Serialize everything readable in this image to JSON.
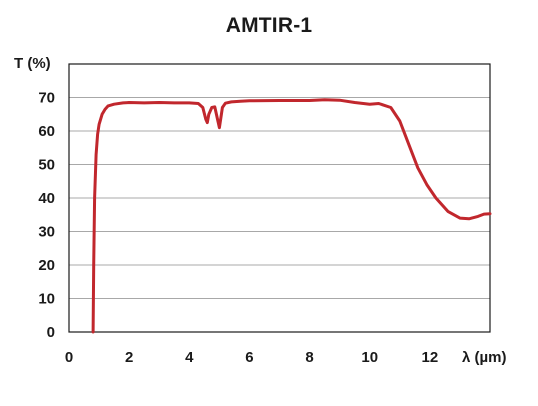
{
  "chart_data": {
    "type": "line",
    "title": "AMTIR-1",
    "ylabel": "T (%)",
    "xlabel": "λ (µm)",
    "xlim": [
      0,
      14
    ],
    "ylim": [
      0,
      80
    ],
    "xticks": [
      0,
      2,
      4,
      6,
      8,
      10,
      12
    ],
    "yticks": [
      0,
      10,
      20,
      30,
      40,
      50,
      60,
      70
    ],
    "grid": "horizontal",
    "line_color": "#c1272d",
    "series": [
      {
        "x": [
          0.8,
          0.82,
          0.85,
          0.9,
          0.95,
          1.0,
          1.1,
          1.2,
          1.3,
          1.5,
          1.8,
          2.0,
          2.5,
          3.0,
          3.5,
          4.0,
          4.3,
          4.45,
          4.55,
          4.6,
          4.65,
          4.75,
          4.85,
          4.95,
          5.0,
          5.05,
          5.1,
          5.2,
          5.4,
          5.7,
          6.0,
          7.0,
          8.0,
          8.5,
          9.0,
          9.5,
          10.0,
          10.3,
          10.7,
          11.0,
          11.3,
          11.6,
          11.9,
          12.2,
          12.6,
          13.0,
          13.3,
          13.6,
          13.8,
          14.0
        ],
        "y": [
          0,
          20,
          40,
          53,
          59,
          62,
          65,
          66.5,
          67.5,
          68,
          68.4,
          68.5,
          68.4,
          68.5,
          68.4,
          68.4,
          68.2,
          67,
          63.5,
          62.5,
          65,
          67,
          67.2,
          63,
          61,
          64,
          67,
          68.3,
          68.7,
          68.9,
          69,
          69.1,
          69.1,
          69.3,
          69.2,
          68.5,
          68,
          68.2,
          67,
          63,
          56,
          49,
          44,
          40,
          36,
          34,
          33.8,
          34.5,
          35.2,
          35.3
        ]
      }
    ]
  }
}
